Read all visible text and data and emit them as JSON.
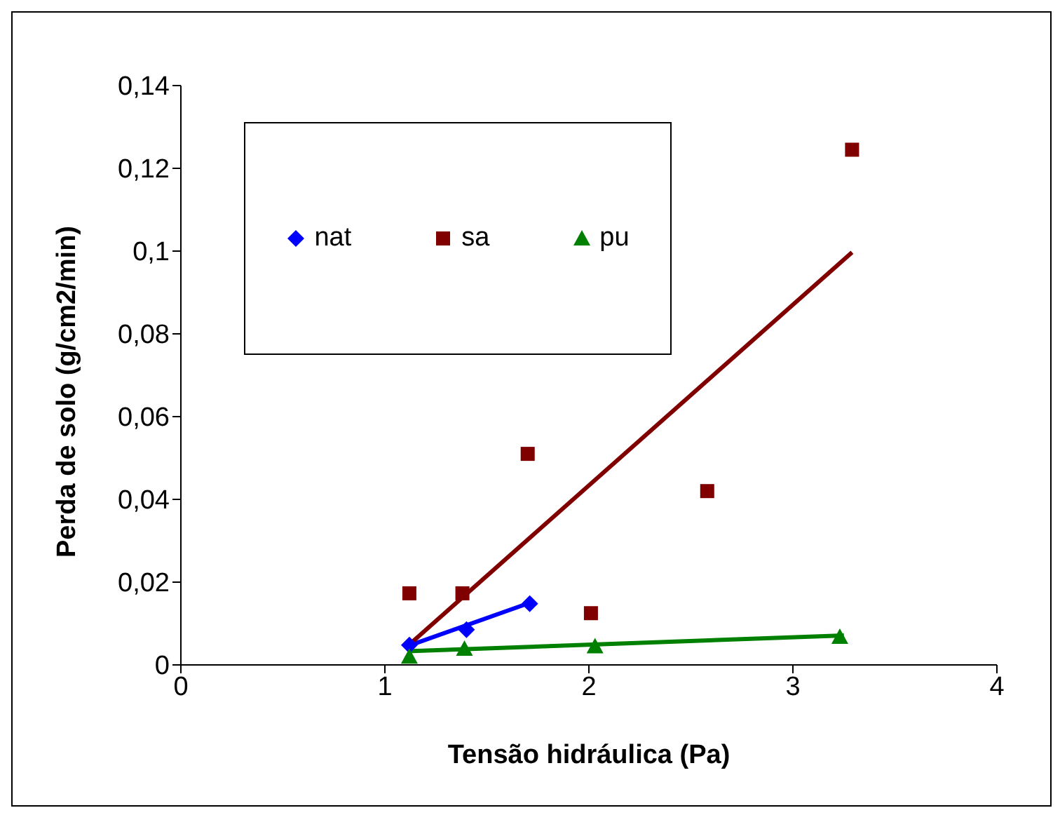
{
  "chart_data": {
    "type": "scatter",
    "xlabel": "Tensão hidráulica (Pa)",
    "ylabel": "Perda de solo (g/cm2/min)",
    "xlim": [
      0,
      4
    ],
    "xticks": [
      0,
      1,
      2,
      3,
      4
    ],
    "ylim": [
      0,
      0.14
    ],
    "yticks": [
      {
        "value": 0,
        "label": "0"
      },
      {
        "value": 0.02,
        "label": "0,02"
      },
      {
        "value": 0.04,
        "label": "0,04"
      },
      {
        "value": 0.06,
        "label": "0,06"
      },
      {
        "value": 0.08,
        "label": "0,08"
      },
      {
        "value": 0.1,
        "label": "0,1"
      },
      {
        "value": 0.12,
        "label": "0,12"
      },
      {
        "value": 0.14,
        "label": "0,14"
      }
    ],
    "grid": false,
    "legend": "top left",
    "series": [
      {
        "name": "nat",
        "type": "scatter",
        "marker": "diamond",
        "color": "#0000ff",
        "x": [
          1.12,
          1.4,
          1.71
        ],
        "values": [
          0.0048,
          0.0085,
          0.0148
        ]
      },
      {
        "name": "sa",
        "type": "scatter",
        "marker": "square",
        "color": "#800000",
        "x": [
          1.12,
          1.38,
          1.7,
          2.01,
          2.58,
          3.29
        ],
        "values": [
          0.0173,
          0.0173,
          0.051,
          0.0125,
          0.042,
          0.1245
        ]
      },
      {
        "name": "pu",
        "type": "scatter",
        "marker": "triangle",
        "color": "#008000",
        "x": [
          1.12,
          1.39,
          2.03,
          3.23
        ],
        "values": [
          0.002,
          0.0039,
          0.0045,
          0.0068
        ]
      },
      {
        "type": "line",
        "marker": "none",
        "color": "#0000ff",
        "x": [
          1.11,
          1.71
        ],
        "values": [
          0.0045,
          0.015
        ]
      },
      {
        "type": "line",
        "marker": "none",
        "color": "#800000",
        "x": [
          1.11,
          3.29
        ],
        "values": [
          0.0045,
          0.0997
        ]
      },
      {
        "type": "line",
        "marker": "none",
        "color": "#008000",
        "x": [
          1.11,
          3.25
        ],
        "values": [
          0.0033,
          0.0071
        ]
      }
    ]
  }
}
